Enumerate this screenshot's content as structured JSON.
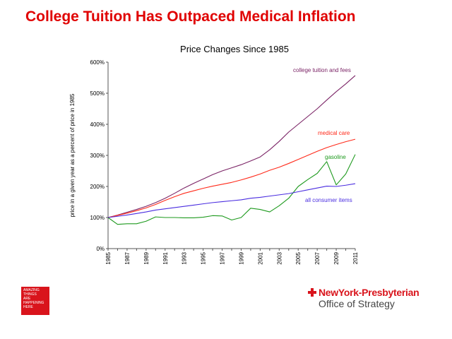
{
  "slide": {
    "title": "College Tuition Has Outpaced Medical Inflation"
  },
  "logo": {
    "lines": [
      "AMAZING",
      "THINGS",
      "ARE",
      "HAPPENING",
      "HERE"
    ]
  },
  "brand": {
    "name": "NewYork-Presbyterian",
    "subtitle": "Office of Strategy",
    "color": "#d9141c"
  },
  "chart_data": {
    "type": "line",
    "title": "Price Changes Since 1985",
    "xlabel": "",
    "ylabel": "price in a given year as a percent of price in 1985",
    "xlim": [
      1985,
      2011
    ],
    "ylim": [
      0,
      600
    ],
    "y_ticks": [
      "0%",
      "100%",
      "200%",
      "300%",
      "400%",
      "500%",
      "600%"
    ],
    "x_ticks": [
      "1985",
      "1987",
      "1989",
      "1991",
      "1993",
      "1995",
      "1997",
      "1999",
      "2001",
      "2003",
      "2005",
      "2007",
      "2009",
      "2011"
    ],
    "grid": false,
    "x": [
      1985,
      1986,
      1987,
      1988,
      1989,
      1990,
      1991,
      1992,
      1993,
      1994,
      1995,
      1996,
      1997,
      1998,
      1999,
      2000,
      2001,
      2002,
      2003,
      2004,
      2005,
      2006,
      2007,
      2008,
      2009,
      2010,
      2011
    ],
    "series": [
      {
        "name": "college tuition and fees",
        "color": "#7b2466",
        "values": [
          100,
          108,
          117,
          126,
          136,
          148,
          162,
          178,
          195,
          210,
          224,
          238,
          250,
          260,
          270,
          282,
          295,
          318,
          345,
          375,
          400,
          425,
          450,
          478,
          505,
          530,
          557
        ]
      },
      {
        "name": "medical care",
        "color": "#ff2a1a",
        "values": [
          100,
          107,
          114,
          122,
          131,
          142,
          155,
          167,
          178,
          186,
          194,
          201,
          207,
          213,
          221,
          230,
          240,
          252,
          262,
          274,
          287,
          300,
          313,
          325,
          335,
          344,
          352
        ]
      },
      {
        "name": "gasoline",
        "color": "#1e9a1e",
        "values": [
          100,
          78,
          80,
          80,
          88,
          102,
          100,
          100,
          99,
          99,
          101,
          106,
          105,
          92,
          100,
          130,
          126,
          118,
          138,
          162,
          200,
          222,
          242,
          280,
          205,
          240,
          303
        ]
      },
      {
        "name": "all consumer items",
        "color": "#4a2de0",
        "values": [
          100,
          104,
          108,
          113,
          118,
          124,
          128,
          132,
          136,
          140,
          144,
          148,
          151,
          154,
          157,
          162,
          165,
          169,
          173,
          177,
          183,
          189,
          195,
          201,
          200,
          204,
          209
        ]
      }
    ]
  }
}
